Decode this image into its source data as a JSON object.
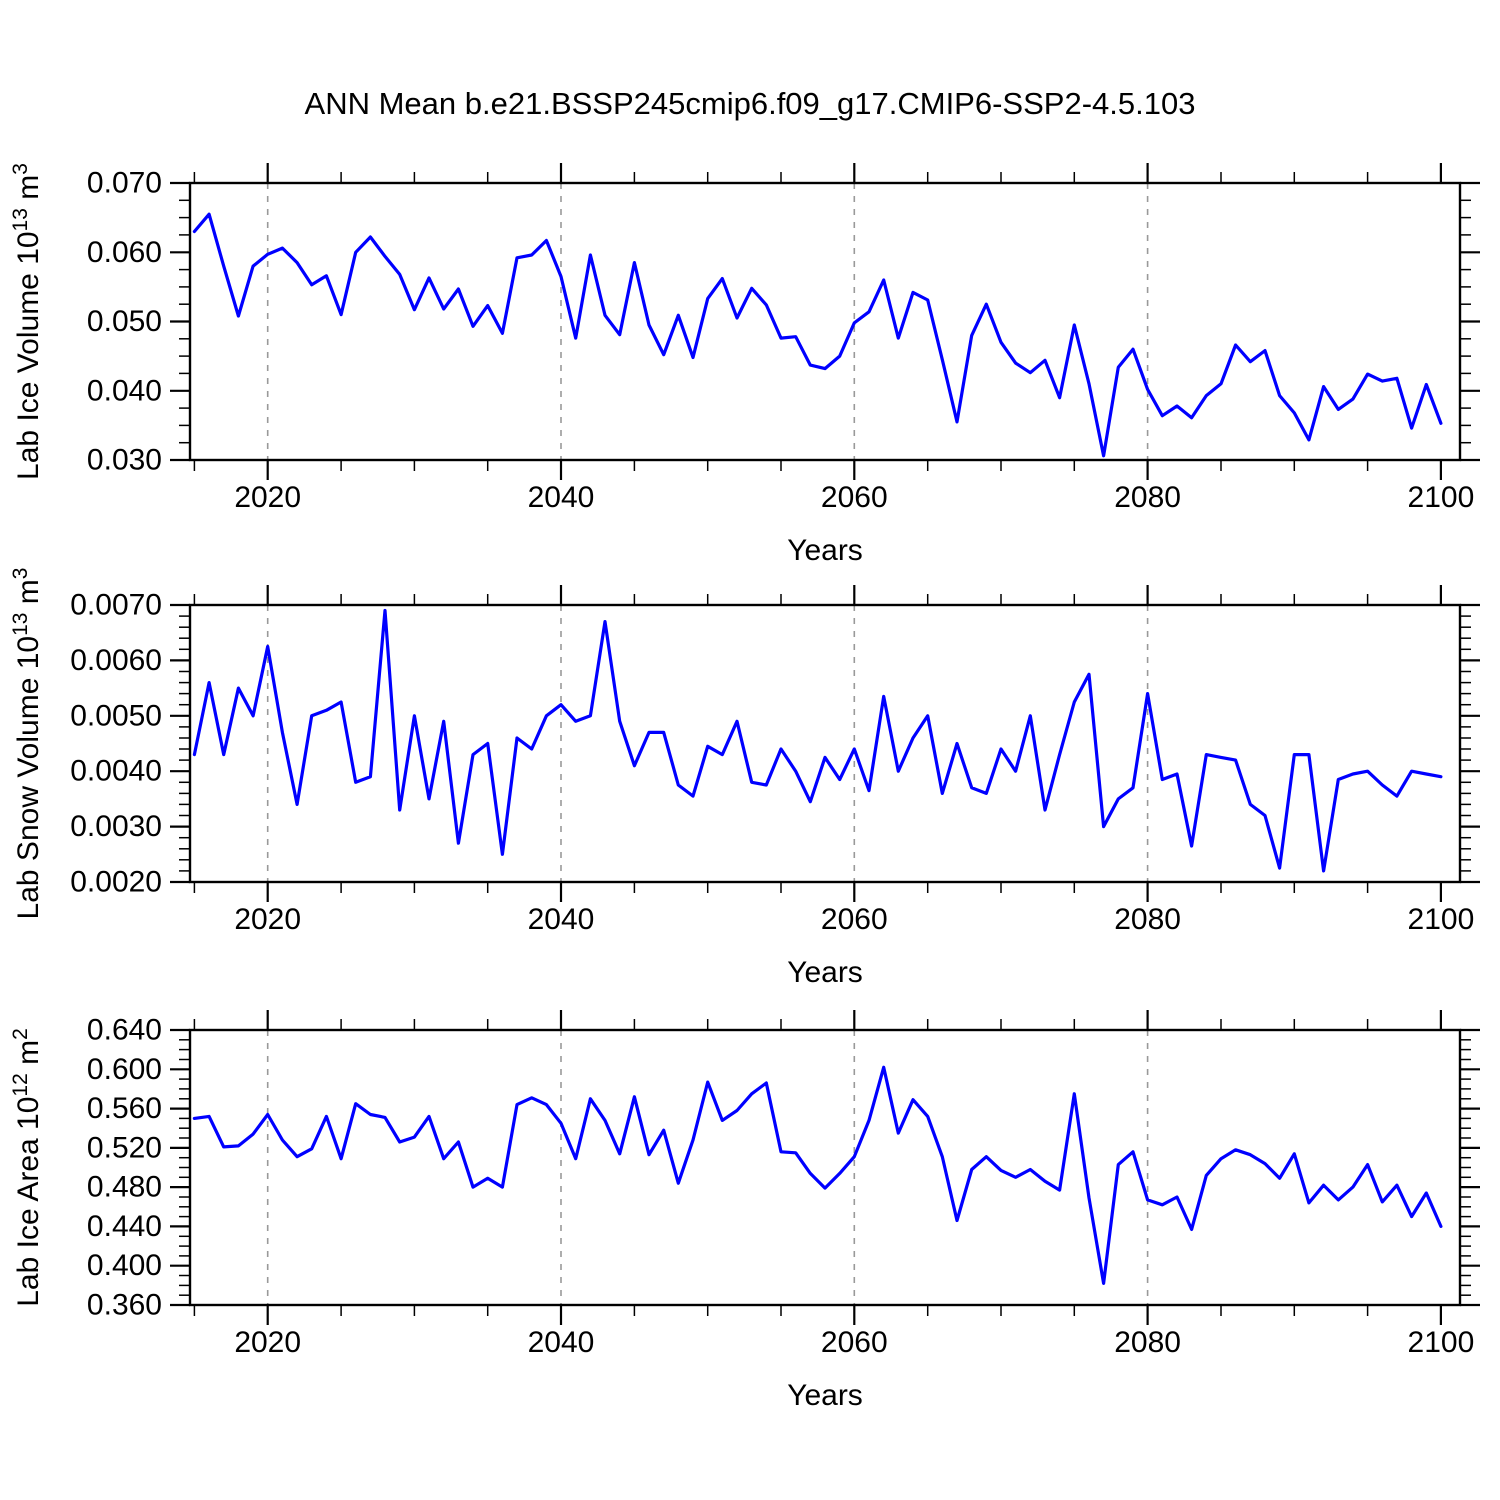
{
  "chart_data": {
    "type": "line",
    "title": "ANN Mean b.e21.BSSP245cmip6.f09_g17.CMIP6-SSP2-4.5.103",
    "x_label": "Years",
    "x_start_year": 2015,
    "x_end_year": 2100,
    "x_axis_min": 2014.7,
    "x_axis_max": 2101.3,
    "x_tick_labels": [
      "2020",
      "2040",
      "2060",
      "2080",
      "2100"
    ],
    "x_tick_values": [
      2020,
      2040,
      2060,
      2080,
      2100
    ],
    "x_minor_tick_step": 5,
    "vertical_gridlines": [
      2020,
      2040,
      2060,
      2080
    ],
    "line_color": "#0000ff",
    "gridline_color": "#999999",
    "axis_color": "#000000",
    "legend": "none",
    "grid": "vertical-dashed-only",
    "panels": [
      {
        "name": "lab-ice-volume",
        "y_label": {
          "prefix": "Lab Ice Volume 10",
          "sup1": "13",
          "mid": " m",
          "sup2": "3"
        },
        "y_ticks": [
          {
            "label": "0.070",
            "value": 0.07
          },
          {
            "label": "0.060",
            "value": 0.06
          },
          {
            "label": "0.050",
            "value": 0.05
          },
          {
            "label": "0.040",
            "value": 0.04
          },
          {
            "label": "0.030",
            "value": 0.03
          }
        ],
        "y_min": 0.03,
        "y_max": 0.07,
        "y_major_step": 0.01,
        "y_minor_step": 0.0025,
        "values": [
          0.063,
          0.0655,
          0.058,
          0.0508,
          0.058,
          0.0597,
          0.0606,
          0.0585,
          0.0553,
          0.0566,
          0.051,
          0.06,
          0.0622,
          0.0594,
          0.0568,
          0.0517,
          0.0563,
          0.0518,
          0.0547,
          0.0493,
          0.0523,
          0.0483,
          0.0592,
          0.0596,
          0.0617,
          0.0565,
          0.0476,
          0.0596,
          0.0509,
          0.0481,
          0.0585,
          0.0495,
          0.0452,
          0.0509,
          0.0448,
          0.0533,
          0.0562,
          0.0505,
          0.0548,
          0.0524,
          0.0476,
          0.0478,
          0.0437,
          0.0432,
          0.045,
          0.0498,
          0.0514,
          0.056,
          0.0476,
          0.0542,
          0.0531,
          0.0445,
          0.0355,
          0.048,
          0.0525,
          0.047,
          0.044,
          0.0426,
          0.0444,
          0.039,
          0.0495,
          0.041,
          0.0306,
          0.0434,
          0.046,
          0.0402,
          0.0364,
          0.0378,
          0.0361,
          0.0393,
          0.041,
          0.0466,
          0.0442,
          0.0458,
          0.0393,
          0.0368,
          0.0329,
          0.0406,
          0.0373,
          0.0388,
          0.0424,
          0.0414,
          0.0418,
          0.0346,
          0.0409,
          0.0353
        ]
      },
      {
        "name": "lab-snow-volume",
        "y_label": {
          "prefix": "Lab Snow Volume 10",
          "sup1": "13",
          "mid": " m",
          "sup2": "3"
        },
        "y_ticks": [
          {
            "label": "0.0070",
            "value": 0.007
          },
          {
            "label": "0.0060",
            "value": 0.006
          },
          {
            "label": "0.0050",
            "value": 0.005
          },
          {
            "label": "0.0040",
            "value": 0.004
          },
          {
            "label": "0.0030",
            "value": 0.003
          },
          {
            "label": "0.0020",
            "value": 0.002
          }
        ],
        "y_min": 0.002,
        "y_max": 0.007,
        "y_major_step": 0.001,
        "y_minor_step": 0.0002,
        "values": [
          0.0043,
          0.0056,
          0.0043,
          0.0055,
          0.005,
          0.00625,
          0.0047,
          0.0034,
          0.005,
          0.0051,
          0.00525,
          0.0038,
          0.0039,
          0.0069,
          0.0033,
          0.005,
          0.0035,
          0.0049,
          0.0027,
          0.0043,
          0.0045,
          0.0025,
          0.0046,
          0.0044,
          0.005,
          0.0052,
          0.0049,
          0.005,
          0.0067,
          0.0049,
          0.0041,
          0.0047,
          0.0047,
          0.00375,
          0.00355,
          0.00445,
          0.0043,
          0.0049,
          0.0038,
          0.00375,
          0.0044,
          0.004,
          0.00345,
          0.00425,
          0.00385,
          0.0044,
          0.00365,
          0.00535,
          0.004,
          0.0046,
          0.005,
          0.0036,
          0.0045,
          0.0037,
          0.0036,
          0.0044,
          0.004,
          0.005,
          0.0033,
          0.0043,
          0.00525,
          0.00575,
          0.003,
          0.0035,
          0.0037,
          0.0054,
          0.00385,
          0.00395,
          0.00265,
          0.0043,
          0.00425,
          0.0042,
          0.0034,
          0.0032,
          0.00225,
          0.0043,
          0.0043,
          0.0022,
          0.00385,
          0.00395,
          0.004,
          0.00375,
          0.00355,
          0.004,
          0.00395,
          0.0039
        ]
      },
      {
        "name": "lab-ice-area",
        "y_label": {
          "prefix": "Lab Ice Area 10",
          "sup1": "12",
          "mid": " m",
          "sup2": "2"
        },
        "y_ticks": [
          {
            "label": "0.640",
            "value": 0.64
          },
          {
            "label": "0.600",
            "value": 0.6
          },
          {
            "label": "0.560",
            "value": 0.56
          },
          {
            "label": "0.520",
            "value": 0.52
          },
          {
            "label": "0.480",
            "value": 0.48
          },
          {
            "label": "0.440",
            "value": 0.44
          },
          {
            "label": "0.400",
            "value": 0.4
          },
          {
            "label": "0.360",
            "value": 0.36
          }
        ],
        "y_min": 0.36,
        "y_max": 0.64,
        "y_major_step": 0.04,
        "y_minor_step": 0.01,
        "values": [
          0.55,
          0.552,
          0.521,
          0.522,
          0.534,
          0.554,
          0.528,
          0.511,
          0.519,
          0.552,
          0.509,
          0.565,
          0.554,
          0.551,
          0.526,
          0.531,
          0.552,
          0.509,
          0.526,
          0.48,
          0.489,
          0.48,
          0.564,
          0.571,
          0.564,
          0.545,
          0.509,
          0.57,
          0.548,
          0.514,
          0.572,
          0.513,
          0.538,
          0.484,
          0.528,
          0.587,
          0.548,
          0.558,
          0.575,
          0.586,
          0.516,
          0.515,
          0.494,
          0.479,
          0.494,
          0.511,
          0.548,
          0.602,
          0.535,
          0.569,
          0.552,
          0.511,
          0.446,
          0.498,
          0.511,
          0.497,
          0.49,
          0.498,
          0.486,
          0.477,
          0.575,
          0.469,
          0.382,
          0.503,
          0.516,
          0.467,
          0.462,
          0.47,
          0.437,
          0.492,
          0.509,
          0.518,
          0.513,
          0.504,
          0.489,
          0.514,
          0.464,
          0.482,
          0.467,
          0.48,
          0.503,
          0.465,
          0.482,
          0.45,
          0.474,
          0.44
        ]
      }
    ]
  }
}
